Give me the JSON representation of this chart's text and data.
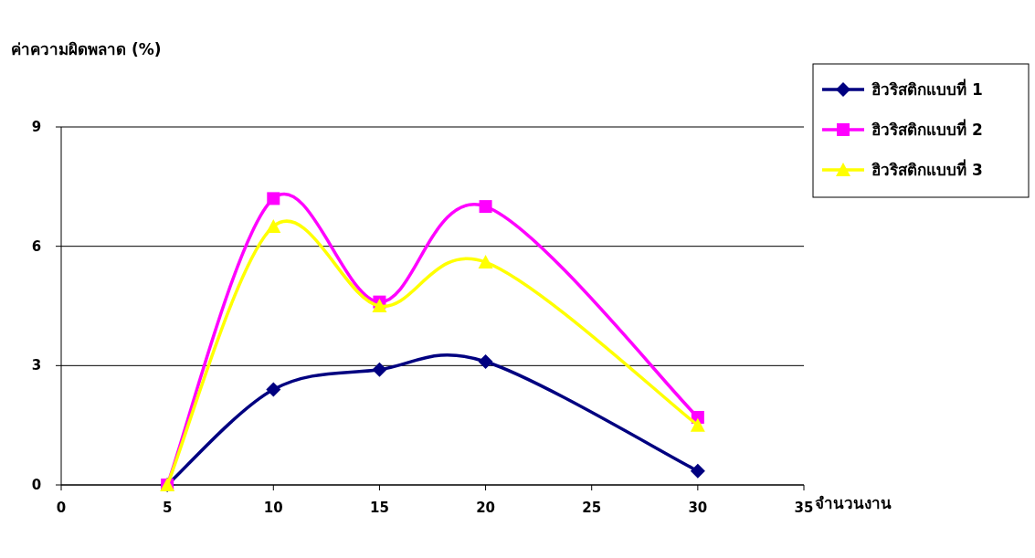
{
  "chart_data": {
    "type": "line",
    "ylabel": "ค่าความผิดพลาด (%)",
    "xlabel": "จำนวนงาน",
    "xlim": [
      0,
      35
    ],
    "xticks": [
      0,
      5,
      10,
      15,
      20,
      25,
      30,
      35
    ],
    "ylim": [
      0,
      9
    ],
    "yticks": [
      0,
      3,
      6,
      9
    ],
    "grid": "y",
    "legend": "top right",
    "line_style": "solid",
    "series": [
      {
        "name": "ฮิวริสติกแบบที่ 1",
        "color": "#000080",
        "marker": "diamond",
        "x": [
          5,
          10,
          15,
          20,
          30
        ],
        "values": [
          0,
          2.4,
          2.9,
          3.1,
          0.35
        ]
      },
      {
        "name": "ฮิวริสติกแบบที่ 2",
        "color": "#ff00ff",
        "marker": "square",
        "x": [
          5,
          10,
          15,
          20,
          30
        ],
        "values": [
          0,
          7.2,
          4.6,
          7.0,
          1.7
        ]
      },
      {
        "name": "ฮิวริสติกแบบที่ 3",
        "color": "#ffff00",
        "marker": "triangle",
        "x": [
          5,
          10,
          15,
          20,
          30
        ],
        "values": [
          0,
          6.5,
          4.5,
          5.6,
          1.5
        ]
      }
    ]
  }
}
